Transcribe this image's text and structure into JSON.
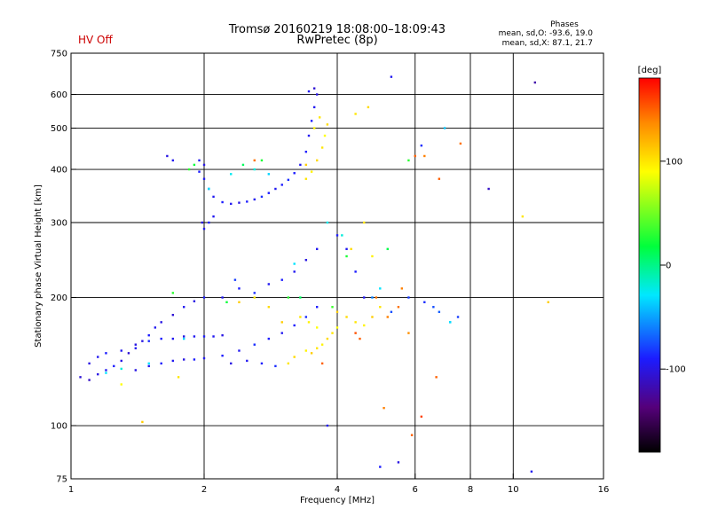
{
  "header": {
    "title_line1": "Tromsø 20160219 18:08:00–18:09:43",
    "title_line2": "RwPretec (8p)",
    "status": "HV Off",
    "status_color": "#cc0000"
  },
  "stats": {
    "title": "Phases",
    "o_line": "mean, sd,O: -93.6, 19.0",
    "x_line": "mean, sd,X:  87.1, 21.7"
  },
  "colorbar": {
    "unit_label": "[deg]",
    "min": -180,
    "max": 180,
    "ticks": [
      100,
      0,
      -100
    ],
    "tick_labels": [
      "100",
      "0",
      "-100"
    ]
  },
  "chart_data": {
    "type": "scatter",
    "title": "Tromsø 20160219 18:08:00–18:09:43",
    "subtitle": "RwPretec (8p)",
    "xlabel": "Frequency [MHz]",
    "ylabel": "Stationary phase Virtual Height [km]",
    "xscale": "log",
    "yscale": "log",
    "xlim": [
      1,
      16
    ],
    "ylim": [
      75,
      750
    ],
    "xticks": [
      1,
      2,
      4,
      6,
      8,
      10,
      16
    ],
    "xtick_labels": [
      "1",
      "2",
      "4",
      "6",
      "8",
      "10",
      "16"
    ],
    "x_gridlines": [
      2,
      4,
      6,
      8,
      10
    ],
    "yticks": [
      75,
      100,
      200,
      300,
      400,
      500,
      600,
      750
    ],
    "ytick_labels": [
      "75",
      "100",
      "200",
      "300",
      "400",
      "500",
      "600",
      "750"
    ],
    "y_gridlines": [
      100,
      200,
      300,
      400,
      500,
      600
    ],
    "grid": true,
    "color_encoding": "phase [deg], rainbow colormap from -180 (black) to 180 (red)",
    "series": [
      {
        "values": [
          [
            1.05,
            130,
            -105
          ],
          [
            1.1,
            128,
            -110
          ],
          [
            1.15,
            132,
            -100
          ],
          [
            1.2,
            135,
            -95
          ],
          [
            1.25,
            138,
            -90
          ],
          [
            1.3,
            142,
            -100
          ],
          [
            1.35,
            148,
            -105
          ],
          [
            1.4,
            152,
            -95
          ],
          [
            1.45,
            158,
            -100
          ],
          [
            1.5,
            163,
            -90
          ],
          [
            1.55,
            170,
            -95
          ],
          [
            1.6,
            175,
            -100
          ],
          [
            1.7,
            182,
            -105
          ],
          [
            1.8,
            190,
            -95
          ],
          [
            1.9,
            196,
            -100
          ],
          [
            2.0,
            200,
            -90
          ],
          [
            1.1,
            140,
            -100
          ],
          [
            1.15,
            145,
            -95
          ],
          [
            1.2,
            148,
            -90
          ],
          [
            1.3,
            150,
            -95
          ],
          [
            1.4,
            155,
            -100
          ],
          [
            1.5,
            158,
            -85
          ],
          [
            1.6,
            160,
            -90
          ],
          [
            1.7,
            160,
            -95
          ],
          [
            1.8,
            162,
            -100
          ],
          [
            1.9,
            162,
            -95
          ],
          [
            2.0,
            162,
            -90
          ],
          [
            2.1,
            162,
            -95
          ],
          [
            2.2,
            163,
            -100
          ],
          [
            1.4,
            135,
            -100
          ],
          [
            1.5,
            138,
            -95
          ],
          [
            1.6,
            140,
            -90
          ],
          [
            1.7,
            142,
            -95
          ],
          [
            1.8,
            143,
            -100
          ],
          [
            1.9,
            143,
            -90
          ],
          [
            2.0,
            144,
            -95
          ],
          [
            2.2,
            146,
            -90
          ],
          [
            2.4,
            150,
            -95
          ],
          [
            2.6,
            155,
            -85
          ],
          [
            2.8,
            160,
            -90
          ],
          [
            3.0,
            165,
            -95
          ],
          [
            3.2,
            172,
            -90
          ],
          [
            3.4,
            180,
            -85
          ],
          [
            3.6,
            190,
            -90
          ],
          [
            2.3,
            140,
            -100
          ],
          [
            2.5,
            142,
            -95
          ],
          [
            2.7,
            140,
            -90
          ],
          [
            2.9,
            138,
            -85
          ],
          [
            1.95,
            395,
            -90
          ],
          [
            2.0,
            380,
            -95
          ],
          [
            2.05,
            360,
            -100
          ],
          [
            2.1,
            345,
            -95
          ],
          [
            2.2,
            335,
            -90
          ],
          [
            2.3,
            332,
            -95
          ],
          [
            2.4,
            334,
            -100
          ],
          [
            2.5,
            336,
            -90
          ],
          [
            2.6,
            340,
            -95
          ],
          [
            2.7,
            345,
            -85
          ],
          [
            2.8,
            352,
            -90
          ],
          [
            2.9,
            360,
            -95
          ],
          [
            3.0,
            368,
            -90
          ],
          [
            3.1,
            378,
            -85
          ],
          [
            3.2,
            392,
            -90
          ],
          [
            3.3,
            410,
            -95
          ],
          [
            3.4,
            440,
            -90
          ],
          [
            3.45,
            480,
            -95
          ],
          [
            3.5,
            520,
            -90
          ],
          [
            3.55,
            560,
            -95
          ],
          [
            3.6,
            600,
            -100
          ],
          [
            3.55,
            620,
            -105
          ],
          [
            3.45,
            610,
            -95
          ],
          [
            1.98,
            300,
            -100
          ],
          [
            2.0,
            290,
            -95
          ],
          [
            2.05,
            300,
            -90
          ],
          [
            2.1,
            310,
            -95
          ],
          [
            2.0,
            410,
            -100
          ],
          [
            1.95,
            420,
            -95
          ],
          [
            2.2,
            200,
            -95
          ],
          [
            2.4,
            210,
            -90
          ],
          [
            2.6,
            205,
            -85
          ],
          [
            2.8,
            215,
            -95
          ],
          [
            3.0,
            220,
            -90
          ],
          [
            3.2,
            230,
            -95
          ],
          [
            3.4,
            245,
            -100
          ],
          [
            3.6,
            260,
            -95
          ],
          [
            4.0,
            280,
            -90
          ],
          [
            4.2,
            260,
            -95
          ],
          [
            4.4,
            230,
            -90
          ],
          [
            4.6,
            200,
            -95
          ],
          [
            1.65,
            430,
            -100
          ],
          [
            1.7,
            420,
            -95
          ],
          [
            2.35,
            220,
            -80
          ],
          [
            3.8,
            100,
            -95
          ],
          [
            5.0,
            80,
            -90
          ],
          [
            5.5,
            82,
            -100
          ],
          [
            11.0,
            78,
            -95
          ],
          [
            11.2,
            640,
            -120
          ],
          [
            5.3,
            660,
            -95
          ],
          [
            8.8,
            360,
            -110
          ],
          [
            6.2,
            455,
            -85
          ],
          [
            5.8,
            200,
            -80
          ],
          [
            6.3,
            195,
            -85
          ],
          [
            6.8,
            185,
            -70
          ],
          [
            7.5,
            180,
            -80
          ],
          [
            7.2,
            175,
            -60
          ],
          [
            6.6,
            190,
            -75
          ],
          [
            4.8,
            200,
            -60
          ],
          [
            5.3,
            185,
            -75
          ]
        ]
      },
      {
        "values": [
          [
            1.2,
            133,
            -30
          ],
          [
            1.3,
            136,
            -20
          ],
          [
            1.5,
            140,
            -30
          ],
          [
            1.8,
            160,
            -35
          ],
          [
            2.05,
            360,
            -30
          ],
          [
            2.3,
            390,
            -25
          ],
          [
            2.6,
            400,
            -20
          ],
          [
            2.8,
            390,
            -35
          ],
          [
            3.2,
            240,
            -30
          ],
          [
            3.8,
            300,
            -25
          ],
          [
            4.1,
            280,
            -20
          ],
          [
            5.0,
            210,
            -30
          ],
          [
            7.0,
            500,
            -40
          ],
          [
            7.2,
            175,
            -30
          ],
          [
            1.85,
            400,
            30
          ],
          [
            1.9,
            410,
            20
          ],
          [
            2.45,
            410,
            10
          ],
          [
            2.7,
            420,
            25
          ],
          [
            3.1,
            200,
            30
          ],
          [
            3.3,
            200,
            10
          ],
          [
            4.2,
            250,
            25
          ],
          [
            1.7,
            205,
            30
          ],
          [
            2.25,
            195,
            20
          ],
          [
            3.9,
            190,
            35
          ],
          [
            5.2,
            260,
            15
          ],
          [
            5.8,
            420,
            30
          ]
        ]
      },
      {
        "values": [
          [
            3.1,
            140,
            100
          ],
          [
            3.2,
            145,
            105
          ],
          [
            3.4,
            150,
            95
          ],
          [
            3.5,
            148,
            110
          ],
          [
            3.6,
            152,
            100
          ],
          [
            3.7,
            155,
            95
          ],
          [
            3.8,
            160,
            105
          ],
          [
            3.9,
            165,
            100
          ],
          [
            3.6,
            170,
            90
          ],
          [
            3.45,
            175,
            95
          ],
          [
            3.3,
            180,
            100
          ],
          [
            3.4,
            380,
            100
          ],
          [
            3.5,
            395,
            95
          ],
          [
            3.6,
            420,
            105
          ],
          [
            3.7,
            450,
            100
          ],
          [
            3.75,
            480,
            90
          ],
          [
            3.8,
            510,
            105
          ],
          [
            3.65,
            530,
            100
          ],
          [
            3.55,
            500,
            95
          ],
          [
            3.4,
            410,
            110
          ],
          [
            4.0,
            185,
            110
          ],
          [
            4.2,
            180,
            105
          ],
          [
            4.4,
            175,
            100
          ],
          [
            4.6,
            172,
            95
          ],
          [
            4.8,
            180,
            110
          ],
          [
            5.0,
            190,
            100
          ],
          [
            4.3,
            260,
            105
          ],
          [
            4.6,
            300,
            100
          ],
          [
            4.8,
            250,
            95
          ],
          [
            4.0,
            170,
            90
          ],
          [
            3.0,
            175,
            110
          ],
          [
            2.8,
            190,
            105
          ],
          [
            2.6,
            200,
            100
          ],
          [
            2.4,
            195,
            110
          ],
          [
            1.75,
            130,
            100
          ],
          [
            1.3,
            125,
            90
          ],
          [
            1.45,
            102,
            110
          ],
          [
            4.4,
            540,
            100
          ],
          [
            4.7,
            560,
            105
          ],
          [
            10.5,
            310,
            100
          ],
          [
            12.0,
            195,
            110
          ]
        ]
      },
      {
        "values": [
          [
            4.5,
            160,
            150
          ],
          [
            5.2,
            180,
            140
          ],
          [
            5.5,
            190,
            145
          ],
          [
            5.8,
            165,
            135
          ],
          [
            6.0,
            430,
            150
          ],
          [
            6.3,
            430,
            140
          ],
          [
            7.6,
            460,
            145
          ],
          [
            6.8,
            380,
            150
          ],
          [
            5.9,
            95,
            150
          ],
          [
            6.2,
            105,
            160
          ],
          [
            5.1,
            110,
            140
          ],
          [
            6.7,
            130,
            150
          ],
          [
            4.9,
            200,
            145
          ],
          [
            4.4,
            165,
            155
          ],
          [
            5.6,
            210,
            140
          ],
          [
            3.7,
            140,
            150
          ],
          [
            2.6,
            420,
            145
          ]
        ]
      }
    ]
  }
}
